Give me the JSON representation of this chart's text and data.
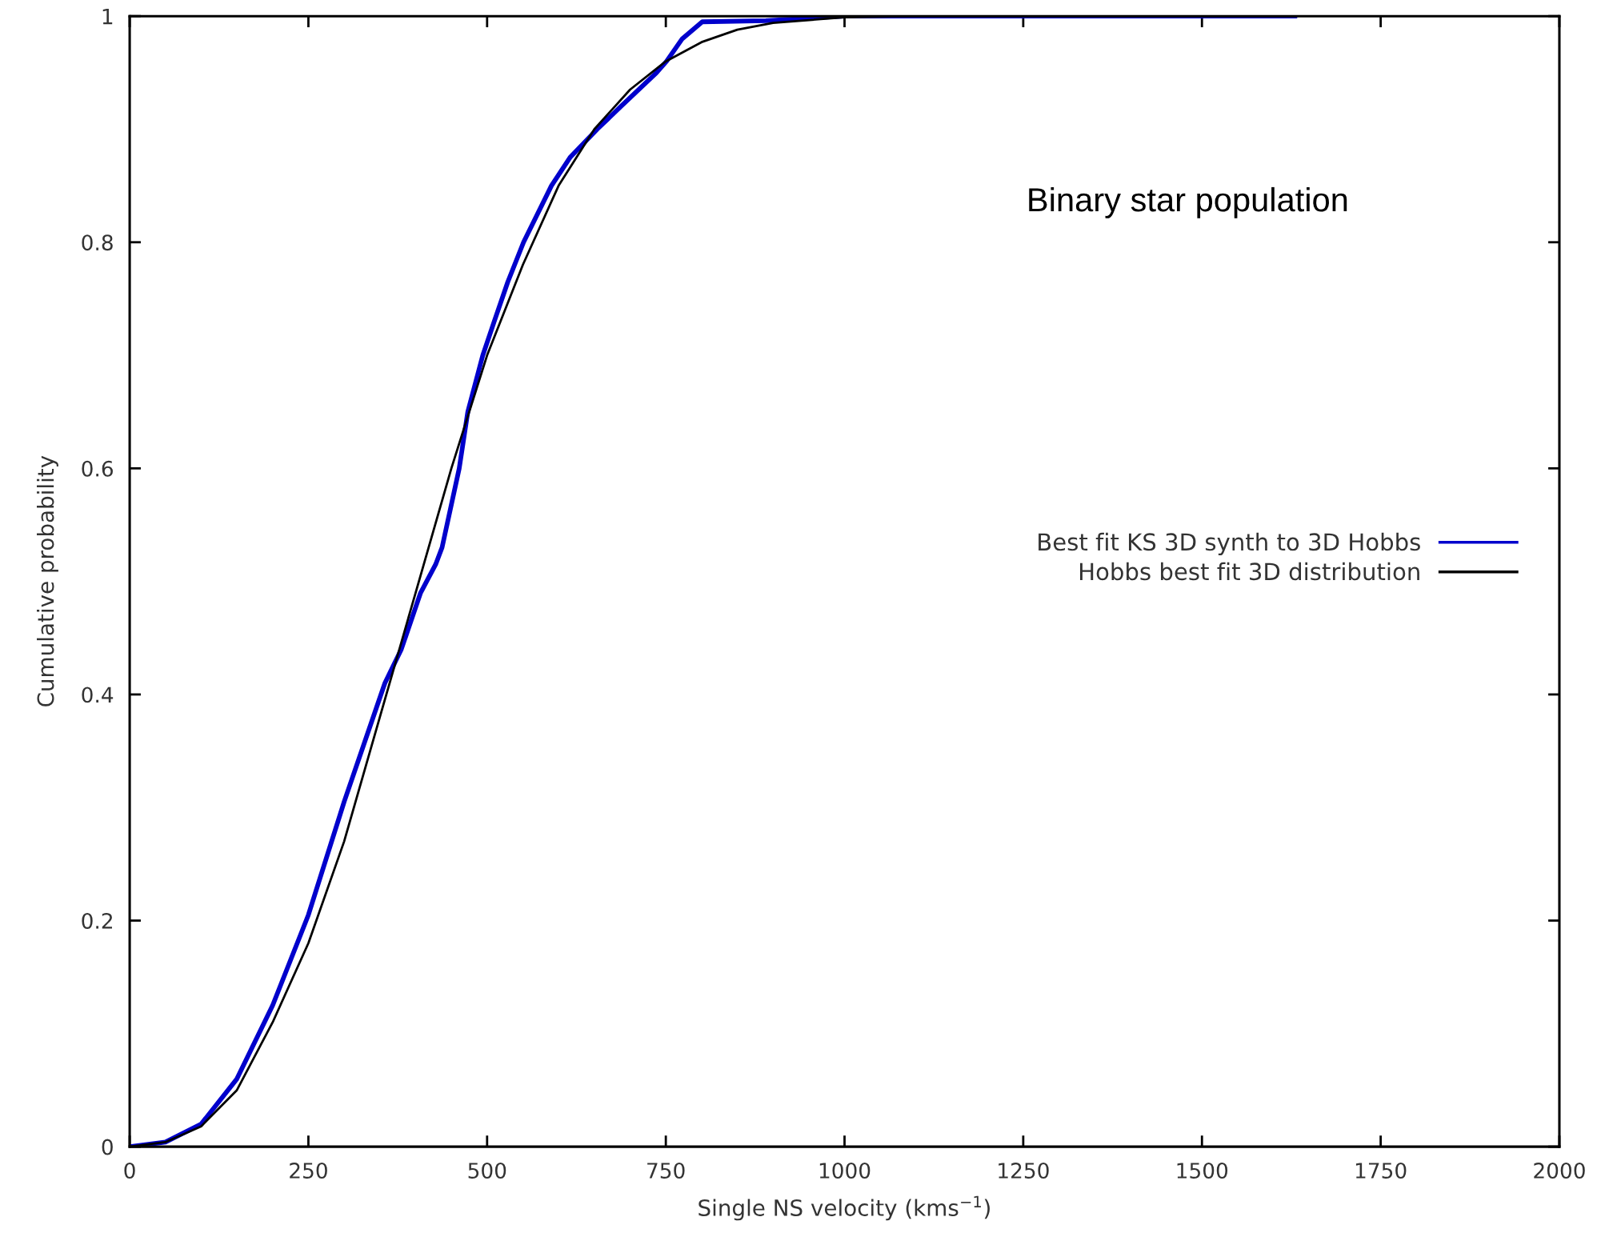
{
  "chart_data": {
    "type": "line",
    "xlabel": "Single NS velocity (kms$^{−1}$)",
    "ylabel": "Cumulative probability",
    "annotations": [
      "Binary star population"
    ],
    "xlim": [
      0,
      2000
    ],
    "ylim": [
      0,
      1
    ],
    "xticks": [
      0,
      250,
      500,
      750,
      1000,
      1250,
      1500,
      1750,
      2000
    ],
    "yticks": [
      0,
      0.2,
      0.4,
      0.6,
      0.8,
      1
    ],
    "grid": false,
    "legend": "right",
    "line_style": "solid",
    "marker": "none",
    "series": [
      {
        "name": "Best fit KS 3D synth to 3D Hobbs",
        "color": "#0000cc",
        "x": [
          0,
          50,
          100,
          150,
          200,
          250,
          300,
          357,
          380,
          407,
          428,
          437,
          461,
          473,
          494,
          510,
          529,
          551,
          590,
          616,
          654,
          687,
          737,
          751,
          773,
          801,
          890,
          1000,
          1630
        ],
        "values": [
          0,
          0.004,
          0.02,
          0.06,
          0.125,
          0.205,
          0.305,
          0.41,
          0.44,
          0.49,
          0.515,
          0.53,
          0.6,
          0.65,
          0.7,
          0.73,
          0.765,
          0.8,
          0.85,
          0.875,
          0.9,
          0.92,
          0.95,
          0.96,
          0.98,
          0.995,
          0.996,
          1,
          1
        ]
      },
      {
        "name": "Hobbs best fit 3D distribution",
        "color": "#000000",
        "x": [
          0,
          50,
          100,
          150,
          200,
          250,
          300,
          350,
          400,
          450,
          500,
          550,
          600,
          650,
          700,
          750,
          800,
          850,
          900,
          1000,
          1100,
          1630
        ],
        "values": [
          0,
          0.004,
          0.018,
          0.05,
          0.11,
          0.18,
          0.27,
          0.38,
          0.49,
          0.6,
          0.7,
          0.78,
          0.85,
          0.9,
          0.935,
          0.96,
          0.977,
          0.988,
          0.994,
          0.999,
          1,
          1
        ]
      }
    ]
  }
}
